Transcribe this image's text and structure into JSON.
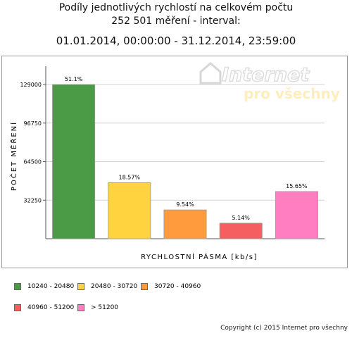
{
  "header": {
    "title_line1": "Podíly jednotlivých rychlostí na celkovém počtu",
    "title_line2": "252 501 měření - interval:",
    "title_line3": "01.01.2014, 00:00:00 - 31.12.2014, 23:59:00"
  },
  "watermark": {
    "brand": "Internet",
    "tagline": "pro všechny"
  },
  "chart_data": {
    "type": "bar",
    "ylabel": "POČET MĚŘENÍ",
    "xlabel": "RYCHLOSTNÍ PÁSMA [kb/s]",
    "ylim": [
      0,
      142000
    ],
    "yticks": [
      32250,
      64500,
      96750,
      129000
    ],
    "ytick_labels": [
      "32250",
      "64500",
      "96750",
      "129000"
    ],
    "grid": true,
    "legend_position": "bottom",
    "categories": [
      "10240 - 20480",
      "20480 - 30720",
      "30720 - 40960",
      "40960 - 51200",
      "> 51200"
    ],
    "values": [
      129000,
      46900,
      24100,
      13000,
      39500
    ],
    "labels": [
      "51.1%",
      "18.57%",
      "9.54%",
      "5.14%",
      "15.65%"
    ],
    "colors": [
      "#4a9a46",
      "#ffd33f",
      "#ff9a3d",
      "#f65f5f",
      "#ff7ec2"
    ]
  },
  "legend": {
    "items": [
      {
        "label": "10240 - 20480",
        "color": "#4a9a46"
      },
      {
        "label": "20480 - 30720",
        "color": "#ffd33f"
      },
      {
        "label": "30720 - 40960",
        "color": "#ff9a3d"
      },
      {
        "label": "40960 - 51200",
        "color": "#f65f5f"
      },
      {
        "label": "> 51200",
        "color": "#ff7ec2"
      }
    ]
  },
  "footer": {
    "copyright": "Copyright (c) 2015 Internet pro všechny"
  }
}
